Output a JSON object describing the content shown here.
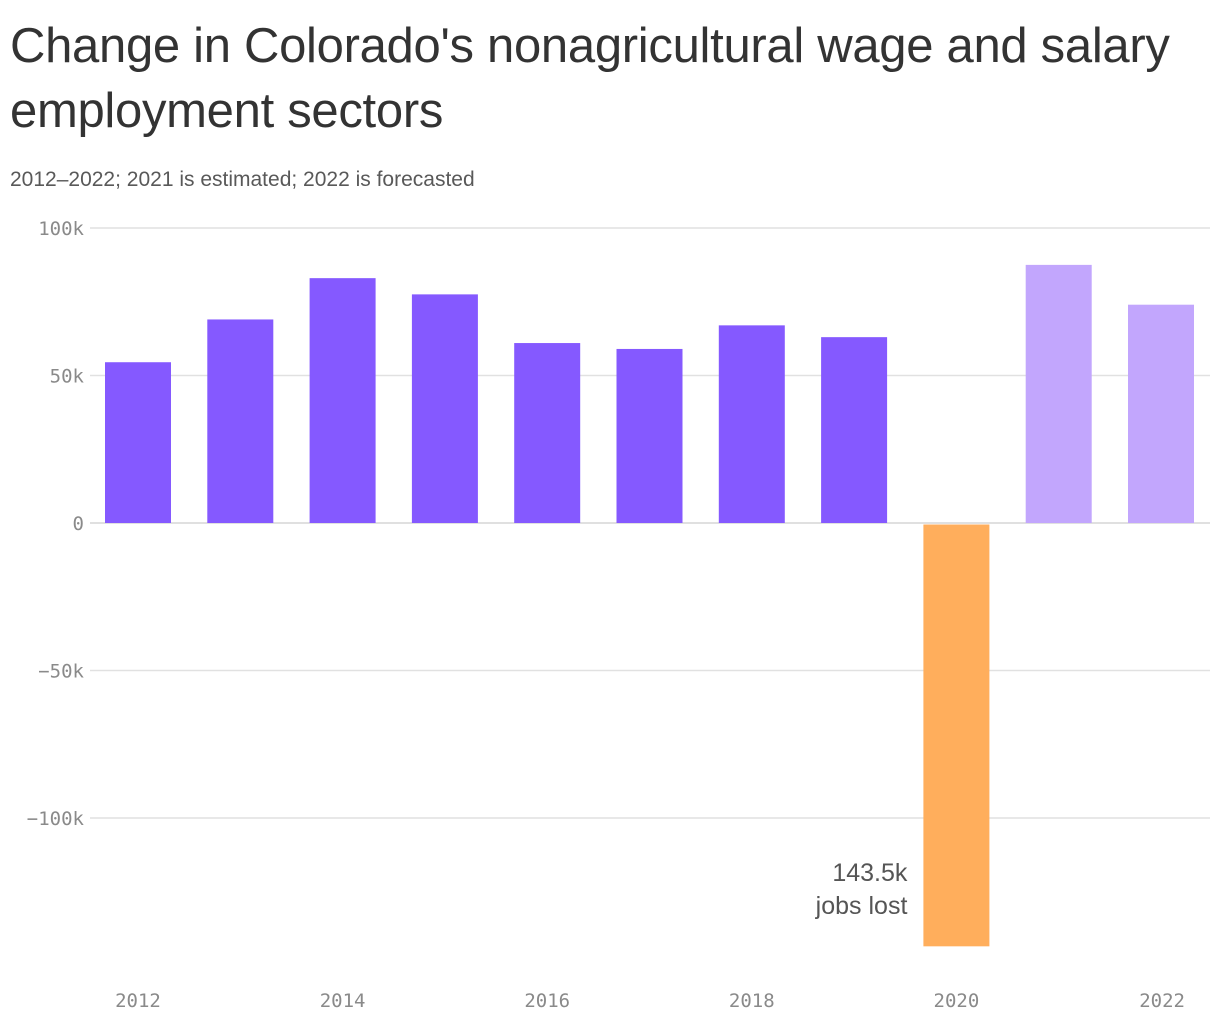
{
  "chart_data": {
    "type": "bar",
    "title": "Change in Colorado's nonagricultural wage and salary employment sectors",
    "subtitle": "2012–2022; 2021 is estimated; 2022 is forecasted",
    "categories": [
      "2012",
      "2013",
      "2014",
      "2015",
      "2016",
      "2017",
      "2018",
      "2019",
      "2020",
      "2021",
      "2022"
    ],
    "values": [
      54500,
      69000,
      83000,
      77500,
      61000,
      59000,
      67000,
      63000,
      -143500,
      87500,
      74000
    ],
    "bar_types": [
      "actual",
      "actual",
      "actual",
      "actual",
      "actual",
      "actual",
      "actual",
      "actual",
      "loss",
      "estimated",
      "forecasted"
    ],
    "colors": {
      "actual": "#8559ff",
      "loss": "#ffae5c",
      "estimated": "#c2a6fd",
      "forecasted": "#c2a6fd",
      "grid": "#e1e1e1",
      "zero_line": "#d6d6d6"
    },
    "ylim": [
      -143500,
      100000
    ],
    "y_ticks": [
      {
        "value": 100000,
        "label": "100k"
      },
      {
        "value": 50000,
        "label": "50k"
      },
      {
        "value": 0,
        "label": "0"
      },
      {
        "value": -50000,
        "label": "−50k"
      },
      {
        "value": -100000,
        "label": "−100k"
      }
    ],
    "x_tick_labels": [
      "2012",
      "",
      "2014",
      "",
      "2016",
      "",
      "2018",
      "",
      "2020",
      "",
      "2022"
    ],
    "xlabel": "",
    "ylabel": "",
    "grid": true,
    "annotation": {
      "category": "2020",
      "lines": [
        "143.5k",
        "jobs lost"
      ]
    }
  }
}
